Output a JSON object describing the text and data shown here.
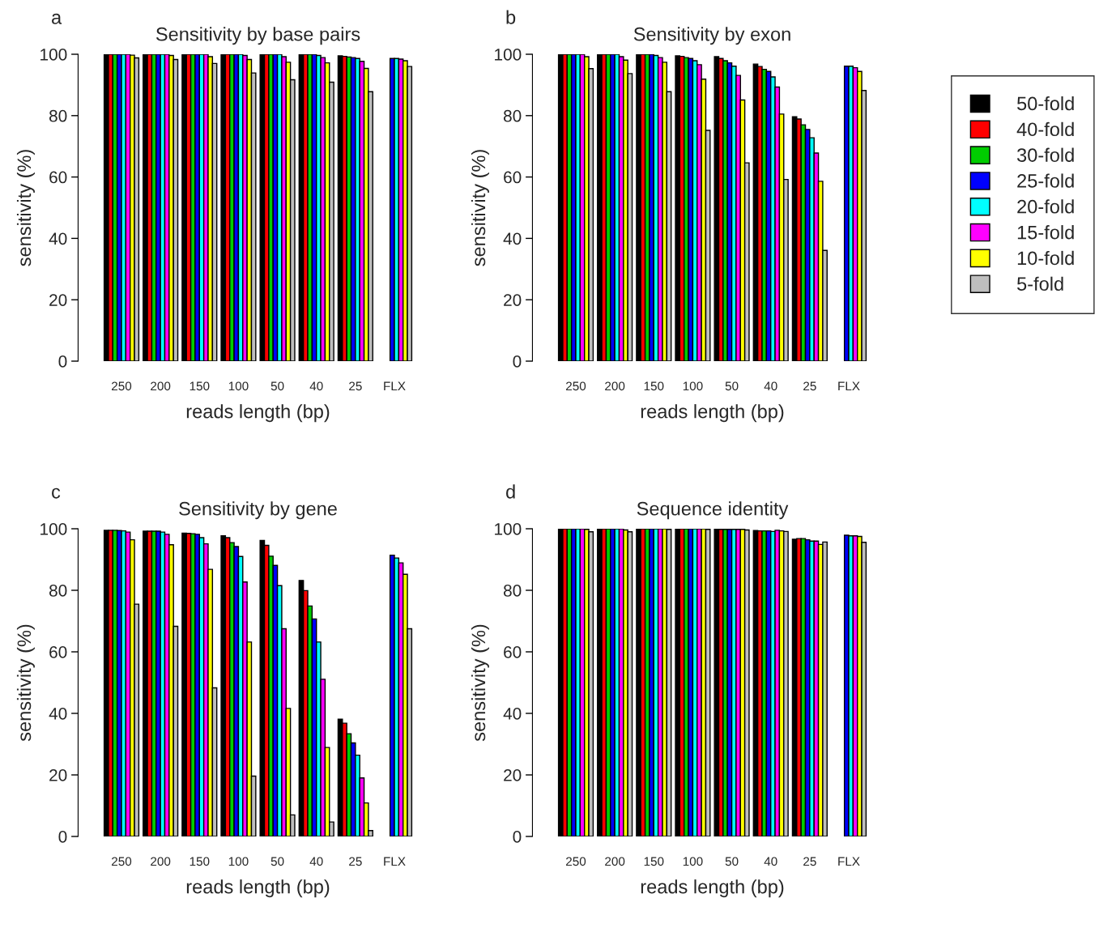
{
  "chart_data": [
    {
      "type": "bar",
      "title": "Sensitivity by base pairs",
      "xlabel": "reads length (bp)",
      "ylabel": "sensitivity (%)",
      "annotations": [
        "a"
      ],
      "legend": "right",
      "categories": [
        "250",
        "200",
        "150",
        "100",
        "50",
        "40",
        "25",
        "FLX"
      ],
      "ylim": [
        0,
        100
      ],
      "yticks": [
        0,
        20,
        40,
        60,
        80,
        100
      ],
      "series": [
        {
          "name": "50-fold",
          "color": "#000000",
          "values": [
            100,
            100,
            100,
            100,
            100,
            100,
            99.5,
            null
          ]
        },
        {
          "name": "40-fold",
          "color": "#ff0000",
          "values": [
            100,
            100,
            100,
            100,
            100,
            100,
            99.3,
            null
          ]
        },
        {
          "name": "30-fold",
          "color": "#00cd00",
          "values": [
            100,
            100,
            100,
            100,
            100,
            100,
            99.1,
            null
          ]
        },
        {
          "name": "25-fold",
          "color": "#0000ff",
          "values": [
            100,
            100,
            100,
            100,
            100,
            100,
            98.9,
            98.6
          ]
        },
        {
          "name": "20-fold",
          "color": "#00ffff",
          "values": [
            100,
            100,
            100,
            100,
            100,
            99.6,
            98.6,
            98.6
          ]
        },
        {
          "name": "15-fold",
          "color": "#ff00ff",
          "values": [
            100,
            100,
            100,
            99.6,
            99.2,
            98.9,
            97.7,
            98.4
          ]
        },
        {
          "name": "10-fold",
          "color": "#ffff00",
          "values": [
            99.7,
            99.6,
            99.2,
            98.3,
            97.4,
            97.2,
            95.4,
            97.9
          ]
        },
        {
          "name": "5-fold",
          "color": "#bebebe",
          "values": [
            98.8,
            98.3,
            97.0,
            93.9,
            91.7,
            90.9,
            87.8,
            96.0
          ]
        }
      ]
    },
    {
      "type": "bar",
      "title": "Sensitivity by exon",
      "xlabel": "reads length (bp)",
      "ylabel": "sensitivity (%)",
      "annotations": [
        "b"
      ],
      "categories": [
        "250",
        "200",
        "150",
        "100",
        "50",
        "40",
        "25",
        "FLX"
      ],
      "ylim": [
        0,
        100
      ],
      "yticks": [
        0,
        20,
        40,
        60,
        80,
        100
      ],
      "series": [
        {
          "color": "#000000",
          "values": [
            100,
            100,
            100,
            99.5,
            99.2,
            96.8,
            79.6,
            null
          ]
        },
        {
          "color": "#ff0000",
          "values": [
            100,
            100,
            100,
            99.3,
            98.6,
            96.0,
            78.9,
            null
          ]
        },
        {
          "color": "#00cd00",
          "values": [
            100,
            100,
            100,
            98.9,
            97.9,
            95.1,
            77.0,
            null
          ]
        },
        {
          "color": "#0000ff",
          "values": [
            100,
            100,
            100,
            98.6,
            97.2,
            94.4,
            75.5,
            96.1
          ]
        },
        {
          "color": "#00ffff",
          "values": [
            100,
            100,
            99.6,
            97.9,
            96.1,
            92.6,
            72.8,
            96.1
          ]
        },
        {
          "color": "#ff00ff",
          "values": [
            100,
            99.2,
            98.9,
            96.6,
            93.1,
            89.3,
            67.8,
            95.6
          ]
        },
        {
          "color": "#ffff00",
          "values": [
            99.2,
            98.1,
            97.4,
            91.9,
            85.1,
            80.5,
            58.6,
            94.4
          ]
        },
        {
          "color": "#bebebe",
          "values": [
            95.3,
            93.7,
            87.8,
            75.2,
            64.6,
            59.2,
            36.1,
            88.2
          ]
        }
      ]
    },
    {
      "type": "bar",
      "title": "Sensitivity by gene",
      "xlabel": "reads length (bp)",
      "ylabel": "sensitivity (%)",
      "annotations": [
        "c"
      ],
      "categories": [
        "250",
        "200",
        "150",
        "100",
        "50",
        "40",
        "25",
        "FLX"
      ],
      "ylim": [
        0,
        100
      ],
      "yticks": [
        0,
        20,
        40,
        60,
        80,
        100
      ],
      "series": [
        {
          "color": "#000000",
          "values": [
            99.5,
            99.2,
            98.6,
            97.7,
            96.2,
            83.2,
            38.1,
            null
          ]
        },
        {
          "color": "#ff0000",
          "values": [
            99.5,
            99.2,
            98.5,
            97.1,
            94.6,
            79.9,
            36.8,
            null
          ]
        },
        {
          "color": "#00cd00",
          "values": [
            99.5,
            99.2,
            98.4,
            95.5,
            91.1,
            74.9,
            33.4,
            null
          ]
        },
        {
          "color": "#0000ff",
          "values": [
            99.4,
            99.2,
            98.2,
            94.2,
            88.1,
            70.7,
            30.4,
            91.4
          ]
        },
        {
          "color": "#00ffff",
          "values": [
            99.3,
            98.9,
            97.1,
            91.0,
            81.5,
            63.2,
            26.4,
            90.5
          ]
        },
        {
          "color": "#ff00ff",
          "values": [
            98.9,
            98.2,
            95.1,
            82.7,
            67.5,
            51.1,
            19.0,
            88.9
          ]
        },
        {
          "color": "#ffff00",
          "values": [
            96.4,
            94.8,
            86.8,
            63.2,
            41.6,
            28.9,
            10.9,
            85.2
          ]
        },
        {
          "color": "#bebebe",
          "values": [
            75.5,
            68.3,
            48.3,
            19.6,
            7.0,
            4.7,
            1.9,
            67.5
          ]
        }
      ]
    },
    {
      "type": "bar",
      "title": "Sequence identity",
      "xlabel": "reads length (bp)",
      "ylabel": "sensitivity (%)",
      "annotations": [
        "d"
      ],
      "categories": [
        "250",
        "200",
        "150",
        "100",
        "50",
        "40",
        "25",
        "FLX"
      ],
      "ylim": [
        0,
        100
      ],
      "yticks": [
        0,
        20,
        40,
        60,
        80,
        100
      ],
      "series": [
        {
          "color": "#000000",
          "values": [
            100,
            100,
            100,
            100,
            99.8,
            99.4,
            96.6,
            null
          ]
        },
        {
          "color": "#ff0000",
          "values": [
            100,
            100,
            100,
            100,
            99.8,
            99.3,
            96.8,
            null
          ]
        },
        {
          "color": "#00cd00",
          "values": [
            100,
            100,
            100,
            100,
            99.8,
            99.3,
            96.8,
            null
          ]
        },
        {
          "color": "#0000ff",
          "values": [
            100,
            100,
            100,
            100,
            99.8,
            99.3,
            96.4,
            97.9
          ]
        },
        {
          "color": "#00ffff",
          "values": [
            100,
            100,
            100,
            100,
            99.8,
            99.1,
            96.0,
            97.7
          ]
        },
        {
          "color": "#ff00ff",
          "values": [
            100,
            100,
            100,
            100,
            99.8,
            99.5,
            96.0,
            97.7
          ]
        },
        {
          "color": "#ffff00",
          "values": [
            99.8,
            99.6,
            100,
            100,
            99.8,
            99.3,
            94.9,
            97.5
          ]
        },
        {
          "color": "#bebebe",
          "values": [
            99.0,
            99.0,
            99.8,
            99.8,
            99.6,
            99.1,
            95.7,
            95.6
          ]
        }
      ]
    }
  ]
}
